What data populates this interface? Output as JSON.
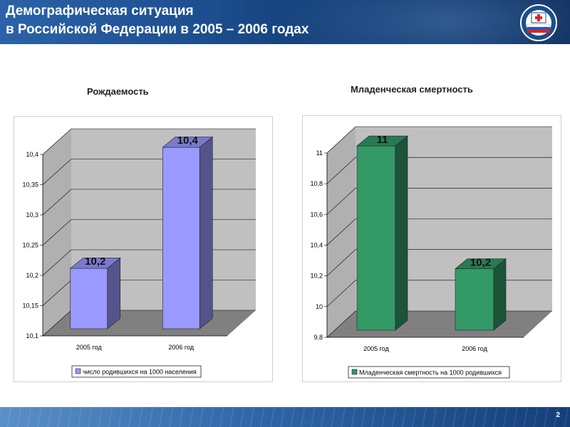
{
  "header": {
    "title_line1": "Демографическая ситуация",
    "title_line2": "в Российской Федерации в 2005 – 2006 годах",
    "logo_icon": "ministry-emblem-icon"
  },
  "footer": {
    "page_number": "2"
  },
  "colors": {
    "birth_bar": "#9999ff",
    "mortality_bar": "#339966",
    "header_bg": "#1d4f8f"
  },
  "chart_data": [
    {
      "type": "bar",
      "title": "Рождаемость",
      "categories": [
        "2005 год",
        "2006 год"
      ],
      "series": [
        {
          "name": "число родившихся на 1000 населения",
          "values": [
            10.2,
            10.4
          ]
        }
      ],
      "data_labels": [
        "10,2",
        "10,4"
      ],
      "ylim": [
        10.1,
        10.4
      ],
      "yticks": [
        10.1,
        10.15,
        10.2,
        10.25,
        10.3,
        10.35,
        10.4
      ],
      "ytick_labels": [
        "10,1",
        "10,15",
        "10,2",
        "10,25",
        "10,3",
        "10,35",
        "10,4"
      ],
      "grid": true,
      "legend_position": "bottom"
    },
    {
      "type": "bar",
      "title": "Младенческая смертность",
      "categories": [
        "2005 год",
        "2006 год"
      ],
      "series": [
        {
          "name": "Младенческая смертность на 1000 родившихся",
          "values": [
            11,
            10.2
          ]
        }
      ],
      "data_labels": [
        "11",
        "10,2"
      ],
      "ylim": [
        9.8,
        11
      ],
      "yticks": [
        9.8,
        10,
        10.2,
        10.4,
        10.6,
        10.8,
        11
      ],
      "ytick_labels": [
        "9,8",
        "10",
        "10,2",
        "10,4",
        "10,6",
        "10,8",
        "11"
      ],
      "grid": true,
      "legend_position": "bottom"
    }
  ]
}
